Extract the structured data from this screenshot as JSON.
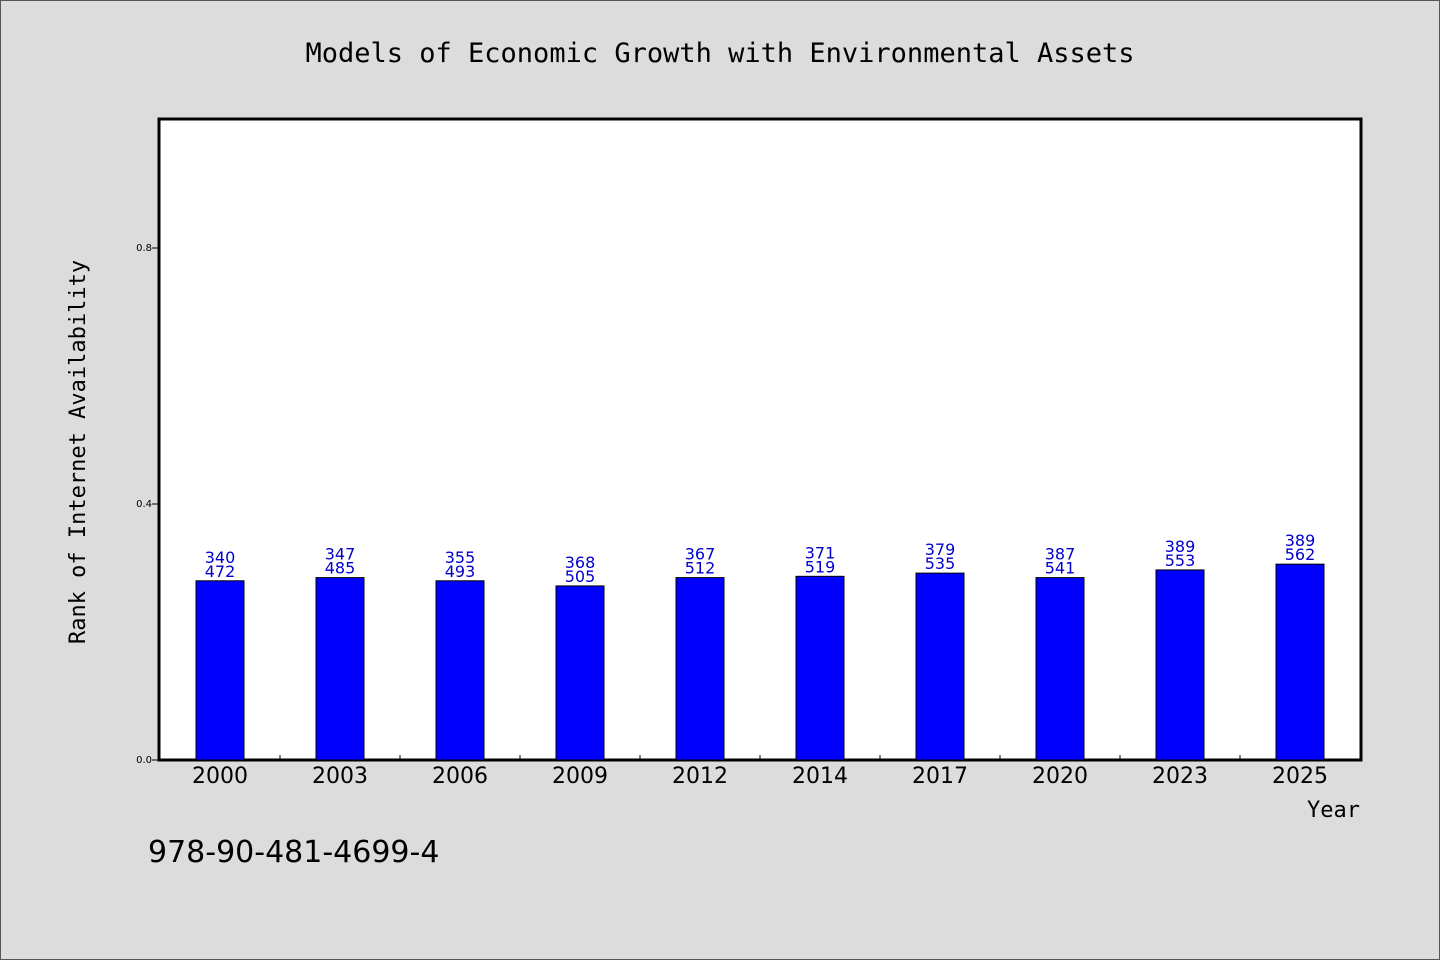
{
  "chart_data": {
    "type": "bar",
    "title": "Models of Economic Growth with Environmental Assets",
    "xlabel": "Year",
    "ylabel": "Rank of Internet Availability",
    "categories": [
      "2000",
      "2003",
      "2006",
      "2009",
      "2012",
      "2014",
      "2017",
      "2020",
      "2023",
      "2025"
    ],
    "values": [
      0.28,
      0.285,
      0.28,
      0.272,
      0.285,
      0.287,
      0.292,
      0.285,
      0.297,
      0.306
    ],
    "data_labels_top": [
      "340",
      "347",
      "355",
      "368",
      "367",
      "371",
      "379",
      "387",
      "389",
      "389"
    ],
    "data_labels_bottom": [
      "472",
      "485",
      "493",
      "505",
      "512",
      "519",
      "535",
      "541",
      "553",
      "562"
    ],
    "ylim": [
      0,
      1.0
    ],
    "yticks": [
      "0.0",
      "0.4",
      "0.8"
    ],
    "ytick_values": [
      0.0,
      0.4,
      0.8
    ],
    "grid": false,
    "bar_color": "#0000ff",
    "label_color": "#0000cc"
  },
  "footer": {
    "isbn": "978-90-481-4699-4"
  }
}
